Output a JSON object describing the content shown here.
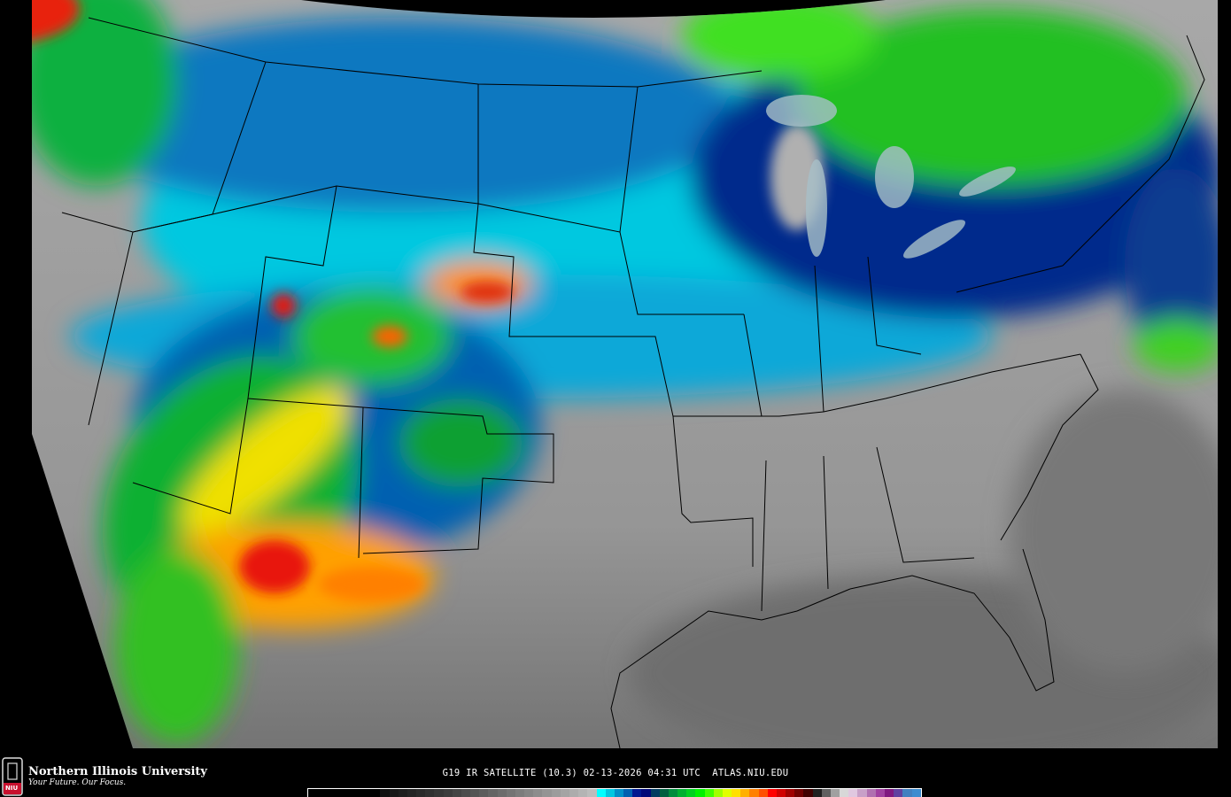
{
  "caption": {
    "satellite": "G19 IR SATELLITE (10.3)",
    "date": "02-13-2026",
    "time": "04:31 UTC",
    "site": "ATLAS.NIU.EDU"
  },
  "logo": {
    "name": "Northern Illinois University",
    "tagline": "Your Future. Our Focus.",
    "badge": "NIU"
  },
  "colorbar": {
    "colors": [
      "#000000",
      "#000000",
      "#000000",
      "#000000",
      "#000000",
      "#000000",
      "#000000",
      "#000000",
      "#101010",
      "#181818",
      "#1e1e1e",
      "#242424",
      "#2a2a2a",
      "#303030",
      "#363636",
      "#3c3c3c",
      "#444444",
      "#4c4c4c",
      "#545454",
      "#5c5c5c",
      "#646464",
      "#6c6c6c",
      "#747474",
      "#7c7c7c",
      "#848484",
      "#8c8c8c",
      "#949494",
      "#9c9c9c",
      "#a4a4a4",
      "#acacac",
      "#b4b4b4",
      "#bcbcbc",
      "#00ffff",
      "#00c8e0",
      "#0090c8",
      "#0060b0",
      "#001890",
      "#000878",
      "#003c60",
      "#006040",
      "#008c3c",
      "#00b030",
      "#00d020",
      "#00f000",
      "#40ff00",
      "#a0ff00",
      "#e0ff00",
      "#ffe000",
      "#ffb000",
      "#ff8000",
      "#ff5000",
      "#ff0000",
      "#d00000",
      "#a00000",
      "#700000",
      "#400000",
      "#202020",
      "#606060",
      "#a0a0a0",
      "#d8d8d8",
      "#e0c8e0",
      "#c8a0c8",
      "#b070b0",
      "#a040a0",
      "#801880",
      "#6040a0",
      "#4080c0",
      "#3c8cd0"
    ]
  },
  "legend_colors": {
    "land_clear": "#9a9a9a",
    "ocean_clear": "#7a7a7a",
    "cold_cloud_cyan": "#00e6f0",
    "cloud_blue": "#1070b8",
    "deep_blue": "#002a8c",
    "green": "#10c020",
    "yellow": "#f0f000",
    "orange": "#ff9000",
    "red": "#e81808",
    "borders": "#000000"
  }
}
